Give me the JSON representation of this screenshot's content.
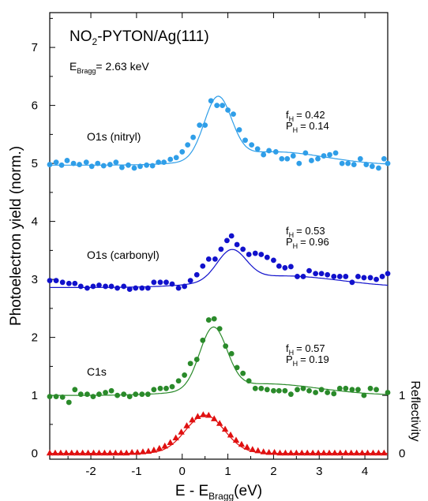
{
  "chart_data": {
    "type": "scatter",
    "title": "NO2-PYTON/Ag(111)",
    "title_main": "NO",
    "title_sub": "2",
    "title_rest": "-PYTON/Ag(111)",
    "energy_main": "E",
    "energy_sub": "Bragg",
    "energy_rest": "= 2.63 keV",
    "xlabel_main": "E - E",
    "xlabel_sub": "Bragg",
    "xlabel_rest": "(eV)",
    "ylabel": "Photoelectron yield (norm.)",
    "ylabel_right": "Reflectivity",
    "xlim": [
      -2.9,
      4.5
    ],
    "ylim": [
      -0.1,
      7.6
    ],
    "x_ticks": [
      -2,
      -1,
      0,
      1,
      2,
      3,
      4
    ],
    "x_tick_labels": [
      "-2",
      "-1",
      "0",
      "1",
      "2",
      "3",
      "4"
    ],
    "y_ticks": [
      0,
      1,
      2,
      3,
      4,
      5,
      6,
      7
    ],
    "y_tick_labels": [
      "0",
      "1",
      "2",
      "3",
      "4",
      "5",
      "6",
      "7"
    ],
    "right_ticks": [
      0,
      1
    ],
    "right_tick_labels": [
      "0",
      "1"
    ],
    "series": [
      {
        "name": "O1s (nitryl)",
        "color": "#2f9ee8",
        "marker": "circle",
        "f_label": "f",
        "f_sub": "H",
        "f_value": "= 0.42",
        "p_label": "P",
        "p_sub": "H",
        "p_value": "= 0.14",
        "fit": {
          "baseline": 4.97,
          "amplitude": 1.06,
          "center": 0.78,
          "width": 0.42,
          "tail_amp": 0.23,
          "tail_center": 2.0,
          "tail_width": 1.6
        },
        "points": [
          [
            -2.9,
            4.98
          ],
          [
            -2.76,
            5.02
          ],
          [
            -2.64,
            4.97
          ],
          [
            -2.52,
            5.05
          ],
          [
            -2.38,
            5.0
          ],
          [
            -2.25,
            4.98
          ],
          [
            -2.1,
            5.02
          ],
          [
            -1.98,
            4.95
          ],
          [
            -1.85,
            5.0
          ],
          [
            -1.72,
            4.96
          ],
          [
            -1.58,
            4.98
          ],
          [
            -1.45,
            5.02
          ],
          [
            -1.32,
            4.93
          ],
          [
            -1.18,
            4.97
          ],
          [
            -1.05,
            4.92
          ],
          [
            -0.92,
            4.95
          ],
          [
            -0.78,
            4.97
          ],
          [
            -0.65,
            4.96
          ],
          [
            -0.52,
            5.02
          ],
          [
            -0.4,
            5.02
          ],
          [
            -0.26,
            5.07
          ],
          [
            -0.13,
            5.1
          ],
          [
            0.0,
            5.2
          ],
          [
            0.12,
            5.32
          ],
          [
            0.24,
            5.45
          ],
          [
            0.38,
            5.66
          ],
          [
            0.5,
            5.66
          ],
          [
            0.63,
            6.08
          ],
          [
            0.76,
            6.0
          ],
          [
            0.88,
            6.0
          ],
          [
            1.0,
            5.92
          ],
          [
            1.12,
            5.85
          ],
          [
            1.25,
            5.58
          ],
          [
            1.38,
            5.4
          ],
          [
            1.52,
            5.32
          ],
          [
            1.65,
            5.25
          ],
          [
            1.78,
            5.15
          ],
          [
            1.9,
            5.22
          ],
          [
            2.05,
            5.2
          ],
          [
            2.18,
            5.08
          ],
          [
            2.3,
            5.08
          ],
          [
            2.43,
            5.13
          ],
          [
            2.56,
            5.0
          ],
          [
            2.7,
            5.18
          ],
          [
            2.83,
            5.05
          ],
          [
            2.97,
            5.08
          ],
          [
            3.1,
            5.13
          ],
          [
            3.23,
            5.15
          ],
          [
            3.36,
            5.18
          ],
          [
            3.5,
            5.0
          ],
          [
            3.63,
            5.0
          ],
          [
            3.76,
            4.98
          ],
          [
            3.9,
            5.08
          ],
          [
            4.03,
            4.98
          ],
          [
            4.16,
            4.95
          ],
          [
            4.3,
            4.92
          ],
          [
            4.42,
            5.08
          ],
          [
            4.5,
            5.0
          ]
        ]
      },
      {
        "name": "O1s (carbonyl)",
        "color": "#1111cc",
        "marker": "circle",
        "f_label": "f",
        "f_sub": "H",
        "f_value": "= 0.53",
        "p_label": "P",
        "p_sub": "H",
        "p_value": "= 0.96",
        "fit": {
          "baseline": 2.86,
          "amplitude": 0.52,
          "center": 1.08,
          "width": 0.45,
          "tail_amp": 0.2,
          "tail_center": 2.2,
          "tail_width": 1.8
        },
        "points": [
          [
            -2.9,
            2.98
          ],
          [
            -2.76,
            2.98
          ],
          [
            -2.62,
            2.95
          ],
          [
            -2.48,
            2.93
          ],
          [
            -2.35,
            2.93
          ],
          [
            -2.22,
            2.88
          ],
          [
            -2.08,
            2.85
          ],
          [
            -1.95,
            2.88
          ],
          [
            -1.82,
            2.9
          ],
          [
            -1.68,
            2.88
          ],
          [
            -1.55,
            2.88
          ],
          [
            -1.42,
            2.85
          ],
          [
            -1.28,
            2.88
          ],
          [
            -1.15,
            2.83
          ],
          [
            -1.02,
            2.85
          ],
          [
            -0.88,
            2.85
          ],
          [
            -0.75,
            2.85
          ],
          [
            -0.62,
            2.95
          ],
          [
            -0.48,
            2.95
          ],
          [
            -0.35,
            2.95
          ],
          [
            -0.22,
            2.92
          ],
          [
            -0.08,
            2.85
          ],
          [
            0.05,
            2.88
          ],
          [
            0.18,
            2.98
          ],
          [
            0.32,
            3.08
          ],
          [
            0.45,
            3.23
          ],
          [
            0.58,
            3.35
          ],
          [
            0.72,
            3.35
          ],
          [
            0.85,
            3.52
          ],
          [
            0.98,
            3.67
          ],
          [
            1.08,
            3.75
          ],
          [
            1.2,
            3.6
          ],
          [
            1.33,
            3.52
          ],
          [
            1.46,
            3.43
          ],
          [
            1.6,
            3.45
          ],
          [
            1.73,
            3.43
          ],
          [
            1.86,
            3.38
          ],
          [
            2.0,
            3.33
          ],
          [
            2.12,
            3.23
          ],
          [
            2.25,
            3.2
          ],
          [
            2.38,
            3.22
          ],
          [
            2.52,
            3.05
          ],
          [
            2.65,
            3.05
          ],
          [
            2.78,
            3.15
          ],
          [
            2.92,
            3.1
          ],
          [
            3.05,
            3.1
          ],
          [
            3.18,
            3.08
          ],
          [
            3.32,
            3.05
          ],
          [
            3.45,
            3.05
          ],
          [
            3.58,
            3.05
          ],
          [
            3.72,
            2.95
          ],
          [
            3.85,
            3.05
          ],
          [
            3.98,
            3.03
          ],
          [
            4.12,
            3.03
          ],
          [
            4.25,
            3.0
          ],
          [
            4.38,
            3.05
          ],
          [
            4.5,
            3.1
          ]
        ]
      },
      {
        "name": "C1s",
        "color": "#2a8a2a",
        "marker": "circle",
        "f_label": "f",
        "f_sub": "H",
        "f_value": "= 0.57",
        "p_label": "P",
        "p_sub": "H",
        "p_value": "= 0.19",
        "fit": {
          "baseline": 1.0,
          "amplitude": 1.05,
          "center": 0.68,
          "width": 0.42,
          "tail_amp": 0.2,
          "tail_center": 1.8,
          "tail_width": 1.7
        },
        "points": [
          [
            -2.9,
            0.98
          ],
          [
            -2.76,
            0.98
          ],
          [
            -2.62,
            0.97
          ],
          [
            -2.48,
            0.88
          ],
          [
            -2.35,
            1.1
          ],
          [
            -2.22,
            1.02
          ],
          [
            -2.08,
            1.02
          ],
          [
            -1.95,
            0.98
          ],
          [
            -1.82,
            1.02
          ],
          [
            -1.68,
            1.05
          ],
          [
            -1.55,
            1.08
          ],
          [
            -1.42,
            1.0
          ],
          [
            -1.28,
            1.02
          ],
          [
            -1.15,
            0.98
          ],
          [
            -1.02,
            1.02
          ],
          [
            -0.88,
            1.02
          ],
          [
            -0.75,
            1.02
          ],
          [
            -0.62,
            1.1
          ],
          [
            -0.48,
            1.12
          ],
          [
            -0.35,
            1.12
          ],
          [
            -0.22,
            1.15
          ],
          [
            -0.08,
            1.25
          ],
          [
            0.05,
            1.35
          ],
          [
            0.18,
            1.55
          ],
          [
            0.32,
            1.62
          ],
          [
            0.45,
            1.95
          ],
          [
            0.58,
            2.3
          ],
          [
            0.7,
            2.32
          ],
          [
            0.82,
            2.15
          ],
          [
            0.95,
            1.85
          ],
          [
            1.08,
            1.72
          ],
          [
            1.2,
            1.48
          ],
          [
            1.33,
            1.38
          ],
          [
            1.46,
            1.25
          ],
          [
            1.6,
            1.12
          ],
          [
            1.73,
            1.12
          ],
          [
            1.86,
            1.1
          ],
          [
            2.0,
            1.08
          ],
          [
            2.12,
            1.08
          ],
          [
            2.25,
            1.08
          ],
          [
            2.38,
            1.02
          ],
          [
            2.52,
            1.1
          ],
          [
            2.65,
            1.12
          ],
          [
            2.78,
            1.08
          ],
          [
            2.92,
            1.05
          ],
          [
            3.05,
            1.1
          ],
          [
            3.18,
            1.05
          ],
          [
            3.32,
            1.03
          ],
          [
            3.45,
            1.12
          ],
          [
            3.58,
            1.12
          ],
          [
            3.72,
            1.1
          ],
          [
            3.85,
            1.1
          ],
          [
            3.98,
            1.0
          ],
          [
            4.12,
            1.12
          ],
          [
            4.25,
            1.1
          ],
          [
            4.5,
            1.05
          ]
        ]
      },
      {
        "name": "Reflectivity",
        "color": "#e01010",
        "marker": "triangle",
        "fit": {
          "baseline": 0.0,
          "amplitude": 0.66,
          "center": 0.5,
          "width": 0.6,
          "tail_amp": 0.0,
          "tail_center": 0.0,
          "tail_width": 1.0
        },
        "points": [
          [
            -2.9,
            0.01
          ],
          [
            -2.78,
            0.01
          ],
          [
            -2.66,
            0.01
          ],
          [
            -2.54,
            0.01
          ],
          [
            -2.42,
            0.01
          ],
          [
            -2.3,
            0.01
          ],
          [
            -2.18,
            0.01
          ],
          [
            -2.06,
            0.01
          ],
          [
            -1.94,
            0.01
          ],
          [
            -1.82,
            0.01
          ],
          [
            -1.7,
            0.01
          ],
          [
            -1.58,
            0.01
          ],
          [
            -1.46,
            0.01
          ],
          [
            -1.34,
            0.01
          ],
          [
            -1.22,
            0.01
          ],
          [
            -1.1,
            0.02
          ],
          [
            -0.98,
            0.02
          ],
          [
            -0.86,
            0.03
          ],
          [
            -0.74,
            0.04
          ],
          [
            -0.62,
            0.06
          ],
          [
            -0.5,
            0.09
          ],
          [
            -0.38,
            0.13
          ],
          [
            -0.26,
            0.19
          ],
          [
            -0.14,
            0.27
          ],
          [
            -0.02,
            0.37
          ],
          [
            0.1,
            0.48
          ],
          [
            0.22,
            0.58
          ],
          [
            0.34,
            0.64
          ],
          [
            0.46,
            0.67
          ],
          [
            0.58,
            0.66
          ],
          [
            0.7,
            0.6
          ],
          [
            0.82,
            0.52
          ],
          [
            0.94,
            0.42
          ],
          [
            1.06,
            0.32
          ],
          [
            1.18,
            0.23
          ],
          [
            1.3,
            0.16
          ],
          [
            1.42,
            0.11
          ],
          [
            1.54,
            0.07
          ],
          [
            1.66,
            0.05
          ],
          [
            1.78,
            0.03
          ],
          [
            1.9,
            0.02
          ],
          [
            2.02,
            0.02
          ],
          [
            2.14,
            0.01
          ],
          [
            2.26,
            0.01
          ],
          [
            2.38,
            0.01
          ],
          [
            2.5,
            0.01
          ],
          [
            2.62,
            0.01
          ],
          [
            2.74,
            0.01
          ],
          [
            2.86,
            0.01
          ],
          [
            2.98,
            0.01
          ],
          [
            3.1,
            0.01
          ],
          [
            3.22,
            0.01
          ],
          [
            3.34,
            0.01
          ],
          [
            3.46,
            0.01
          ],
          [
            3.58,
            0.01
          ],
          [
            3.7,
            0.01
          ],
          [
            3.82,
            0.01
          ],
          [
            3.94,
            0.01
          ],
          [
            4.06,
            0.01
          ],
          [
            4.18,
            0.01
          ],
          [
            4.3,
            0.01
          ],
          [
            4.42,
            0.01
          ]
        ]
      }
    ]
  }
}
